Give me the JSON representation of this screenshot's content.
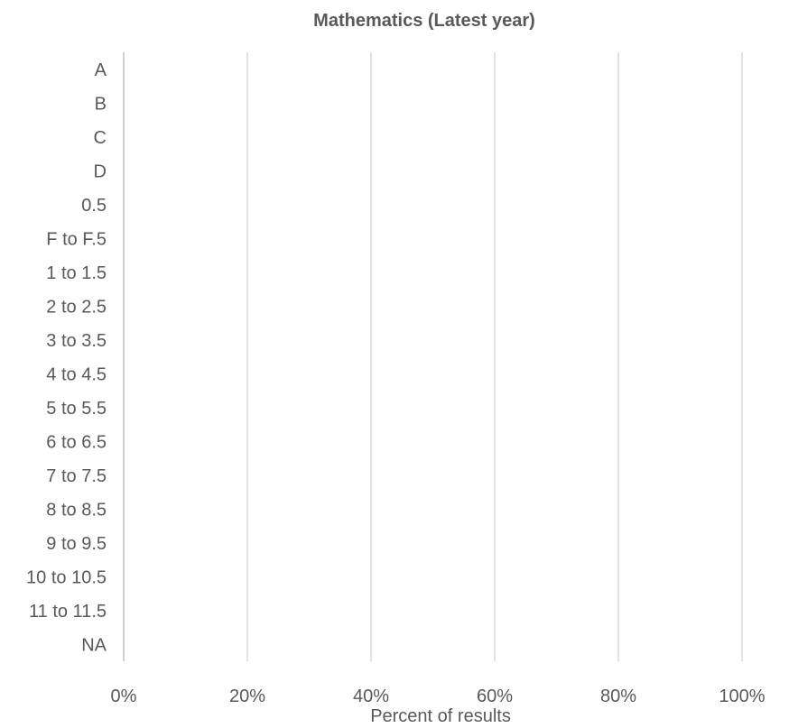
{
  "chart_data": {
    "type": "bar",
    "orientation": "horizontal",
    "title": "Mathematics (Latest year)",
    "xlabel": "Percent of results",
    "ylabel": "",
    "categories": [
      "A",
      "B",
      "C",
      "D",
      "0.5",
      "F to F.5",
      "1 to 1.5",
      "2 to 2.5",
      "3 to 3.5",
      "4 to 4.5",
      "5 to 5.5",
      "6 to 6.5",
      "7 to 7.5",
      "8 to 8.5",
      "9 to 9.5",
      "10 to 10.5",
      "11 to 11.5",
      "NA"
    ],
    "values": [
      0,
      0,
      0,
      0,
      0,
      0,
      0,
      0,
      0,
      0,
      0,
      0,
      0,
      0,
      0,
      0,
      0,
      0
    ],
    "xlim": [
      0,
      100
    ],
    "xticks": [
      "0%",
      "20%",
      "40%",
      "60%",
      "80%",
      "100%"
    ],
    "grid": true,
    "legend": "none",
    "colors": {
      "text": "#595959",
      "grid": "#d9d9d9",
      "axis": "#bfbfbf",
      "bar": "#4472c4"
    }
  }
}
